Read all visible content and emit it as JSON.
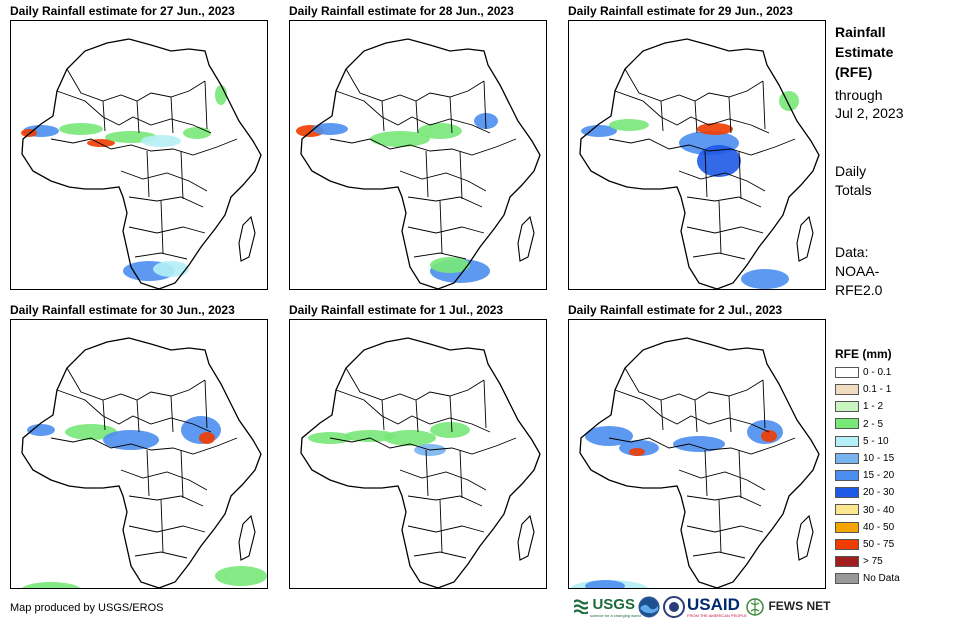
{
  "panels": [
    {
      "title": "Daily Rainfall estimate for 27 Jun., 2023"
    },
    {
      "title": "Daily Rainfall estimate for 28 Jun., 2023"
    },
    {
      "title": "Daily Rainfall estimate for 29 Jun., 2023"
    },
    {
      "title": "Daily Rainfall estimate for 30 Jun., 2023"
    },
    {
      "title": "Daily Rainfall estimate for 1 Jul., 2023"
    },
    {
      "title": "Daily Rainfall estimate for 2 Jul., 2023"
    }
  ],
  "legend": {
    "heading": [
      "Rainfall",
      "Estimate",
      "(RFE)"
    ],
    "through": [
      "through",
      "Jul 2, 2023"
    ],
    "totals": [
      "Daily",
      "Totals"
    ],
    "source": [
      "Data:",
      "NOAA-",
      "RFE2.0"
    ]
  },
  "scale": {
    "title": "RFE (mm)",
    "classes": [
      {
        "label": "0 - 0.1",
        "color": "#ffffff"
      },
      {
        "label": "0.1 - 1",
        "color": "#f2dcc0"
      },
      {
        "label": "1 - 2",
        "color": "#c8f5c0"
      },
      {
        "label": "2 - 5",
        "color": "#78e878"
      },
      {
        "label": "5 - 10",
        "color": "#b4f0f5"
      },
      {
        "label": "10 - 15",
        "color": "#78b4f0"
      },
      {
        "label": "15 - 20",
        "color": "#4b8ef0"
      },
      {
        "label": "20 - 30",
        "color": "#1e5ae6"
      },
      {
        "label": "30 - 40",
        "color": "#fae68c"
      },
      {
        "label": "40 - 50",
        "color": "#f5a500"
      },
      {
        "label": "50 - 75",
        "color": "#f03c00"
      },
      {
        "label": "> 75",
        "color": "#a01e1e"
      },
      {
        "label": "No Data",
        "color": "#999999"
      }
    ]
  },
  "credit": "Map produced by USGS/EROS",
  "logos": {
    "usgs": "USGS",
    "usgs_tagline": "science for a changing world",
    "noaa": "NOAA",
    "usaid": "USAID",
    "usaid_tagline": "FROM THE AMERICAN PEOPLE",
    "fews": "FEWS NET"
  }
}
